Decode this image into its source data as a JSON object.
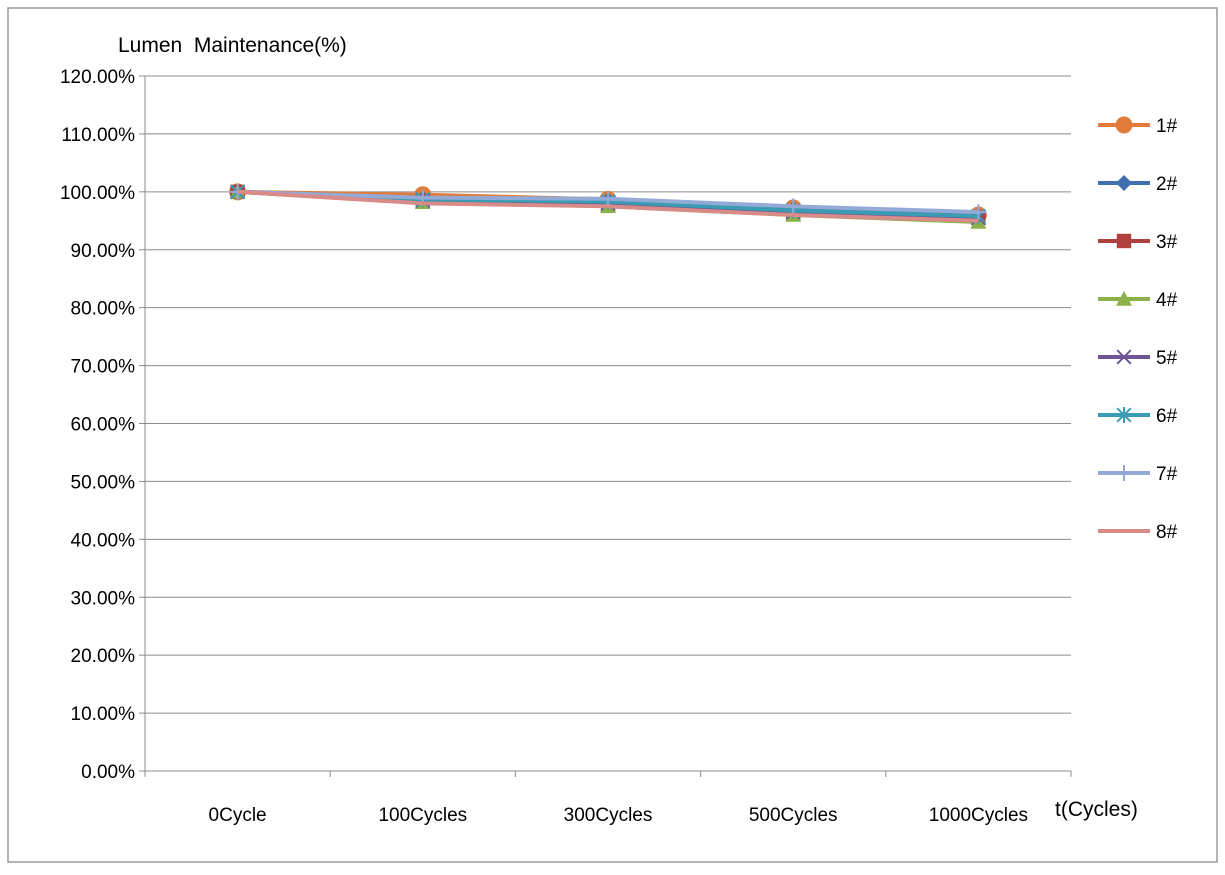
{
  "chart_data": {
    "type": "line",
    "title": "",
    "ylabel": "Lumen  Maintenance(%)",
    "xlabel": "t(Cycles)",
    "categories": [
      "0Cycle",
      "100Cycles",
      "300Cycles",
      "500Cycles",
      "1000Cycles"
    ],
    "ylim": [
      0,
      1.2
    ],
    "y_ticks": [
      "0.00%",
      "10.00%",
      "20.00%",
      "30.00%",
      "40.00%",
      "50.00%",
      "60.00%",
      "70.00%",
      "80.00%",
      "90.00%",
      "100.00%",
      "110.00%",
      "120.00%"
    ],
    "grid": true,
    "legend_position": "right",
    "series": [
      {
        "name": "1#",
        "color": "#E07B39",
        "marker": "circle",
        "values": [
          1.0,
          0.995,
          0.987,
          0.972,
          0.96
        ]
      },
      {
        "name": "2#",
        "color": "#3F6FAE",
        "marker": "diamond",
        "values": [
          1.0,
          0.988,
          0.985,
          0.97,
          0.958
        ]
      },
      {
        "name": "3#",
        "color": "#B0413E",
        "marker": "square",
        "values": [
          1.0,
          0.983,
          0.977,
          0.963,
          0.955
        ]
      },
      {
        "name": "4#",
        "color": "#8CB14A",
        "marker": "triangle",
        "values": [
          1.0,
          0.982,
          0.975,
          0.96,
          0.948
        ]
      },
      {
        "name": "5#",
        "color": "#6E5597",
        "marker": "x",
        "values": [
          1.0,
          0.985,
          0.98,
          0.965,
          0.955
        ]
      },
      {
        "name": "6#",
        "color": "#3A9CB3",
        "marker": "star",
        "values": [
          1.0,
          0.987,
          0.983,
          0.968,
          0.958
        ]
      },
      {
        "name": "7#",
        "color": "#93A9D6",
        "marker": "plus",
        "values": [
          1.0,
          0.99,
          0.988,
          0.975,
          0.965
        ]
      },
      {
        "name": "8#",
        "color": "#D98B87",
        "marker": "none",
        "values": [
          1.0,
          0.98,
          0.975,
          0.96,
          0.95
        ]
      }
    ]
  }
}
